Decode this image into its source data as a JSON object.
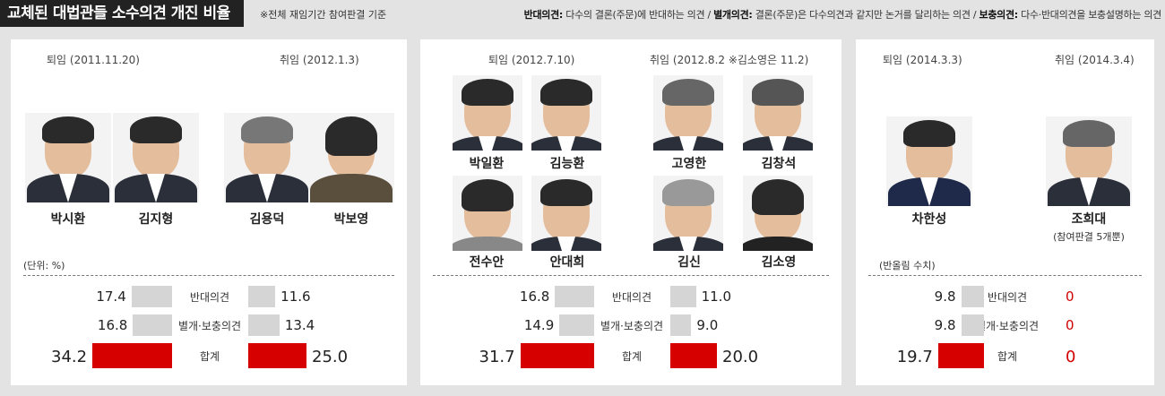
{
  "header": {
    "title": "교체된 대법관들 소수의견 개진 비율",
    "note": "※전체 재임기간 참여판결 기준",
    "legend_a_term": "반대의견:",
    "legend_a_text": " 다수의 결론(주문)에 반대하는 의견 / ",
    "legend_b_term": "별개의견:",
    "legend_b_text": " 결론(주문)은 다수의견과 같지만 논거를 달리하는 의견 / ",
    "legend_c_term": "보충의견:",
    "legend_c_text": " 다수·반대의견을 보충설명하는 의견"
  },
  "panels": [
    {
      "retired_date": "퇴임 (2011.11.20)",
      "appointed_date": "취임 (2012.1.3)",
      "retired": [
        "박시환",
        "김지형"
      ],
      "appointed": [
        "김용덕",
        "박보영"
      ],
      "unit_note": "(단위: %)"
    },
    {
      "retired_date": "퇴임 (2012.7.10)",
      "appointed_date": "취임 (2012.8.2 ※김소영은 11.2)",
      "retired": [
        "박일환",
        "김능환",
        "전수안",
        "안대희"
      ],
      "appointed": [
        "고영한",
        "김창석",
        "김신",
        "김소영"
      ]
    },
    {
      "retired_date": "퇴임 (2014.3.3)",
      "appointed_date": "취임 (2014.3.4)",
      "retired": [
        "차한성"
      ],
      "appointed": [
        "조희대"
      ],
      "appointed_note": "(참여판결 5개뿐)",
      "unit_note": "(반올림 수치)"
    }
  ],
  "chart_data": {
    "type": "bar",
    "categories": [
      "반대의견",
      "별개·보충의견",
      "합계"
    ],
    "groups": [
      {
        "retired": [
          17.4,
          16.8,
          34.2
        ],
        "appointed": [
          11.6,
          13.4,
          25.0
        ]
      },
      {
        "retired": [
          16.8,
          14.9,
          31.7
        ],
        "appointed": [
          11.0,
          9.0,
          20.0
        ]
      },
      {
        "retired": [
          9.8,
          9.8,
          19.7
        ],
        "appointed": [
          0,
          0,
          0
        ]
      }
    ],
    "value_labels": [
      {
        "retired": [
          "17.4",
          "16.8",
          "34.2"
        ],
        "appointed": [
          "11.6",
          "13.4",
          "25.0"
        ]
      },
      {
        "retired": [
          "16.8",
          "14.9",
          "31.7"
        ],
        "appointed": [
          "11.0",
          "9.0",
          "20.0"
        ]
      },
      {
        "retired": [
          "9.8",
          "9.8",
          "19.7"
        ],
        "appointed": [
          "0",
          "0",
          "0"
        ]
      }
    ],
    "colors": {
      "part": "#d5d5d5",
      "total": "#d60000",
      "zero_value": "#d10000"
    }
  },
  "icons": {
    "arrow": "right-arrow-icon",
    "portrait": "portrait-photo-icon"
  }
}
